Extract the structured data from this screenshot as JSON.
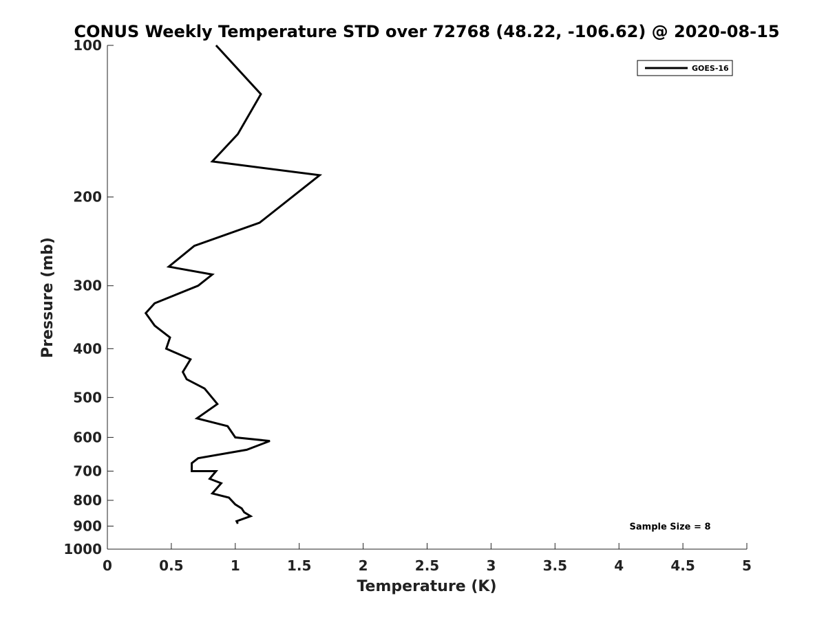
{
  "chart_data": {
    "type": "line",
    "title": "CONUS Weekly Temperature STD over 72768 (48.22, -106.62) @ 2020-08-15",
    "xlabel": "Temperature (K)",
    "ylabel": "Pressure (mb)",
    "xlim": [
      0,
      5
    ],
    "ylim": [
      100,
      1000
    ],
    "yscale": "log",
    "y_inverted": true,
    "grid": false,
    "legend_placement": "top-right",
    "x_ticks": [
      0,
      0.5,
      1,
      1.5,
      2,
      2.5,
      3,
      3.5,
      4,
      4.5,
      5
    ],
    "x_tick_labels": [
      "0",
      "0.5",
      "1",
      "1.5",
      "2",
      "2.5",
      "3",
      "3.5",
      "4",
      "4.5",
      "5"
    ],
    "y_ticks": [
      100,
      200,
      300,
      400,
      500,
      600,
      700,
      800,
      900,
      1000
    ],
    "y_tick_labels": [
      "100",
      "200",
      "300",
      "400",
      "500",
      "600",
      "700",
      "800",
      "900",
      "1000"
    ],
    "series": [
      {
        "name": "GOES-16",
        "color": "#000000",
        "points": [
          [
            0.85,
            100
          ],
          [
            1.2,
            125
          ],
          [
            1.02,
            150
          ],
          [
            0.82,
            170
          ],
          [
            1.66,
            181
          ],
          [
            1.19,
            225
          ],
          [
            0.68,
            250
          ],
          [
            0.48,
            275
          ],
          [
            0.82,
            285
          ],
          [
            0.71,
            300
          ],
          [
            0.37,
            325
          ],
          [
            0.3,
            340
          ],
          [
            0.37,
            360
          ],
          [
            0.49,
            380
          ],
          [
            0.46,
            400
          ],
          [
            0.65,
            420
          ],
          [
            0.59,
            445
          ],
          [
            0.62,
            460
          ],
          [
            0.76,
            480
          ],
          [
            0.86,
            515
          ],
          [
            0.7,
            550
          ],
          [
            0.94,
            570
          ],
          [
            1.0,
            600
          ],
          [
            1.27,
            610
          ],
          [
            1.09,
            635
          ],
          [
            0.71,
            660
          ],
          [
            0.66,
            675
          ],
          [
            0.66,
            700
          ],
          [
            0.85,
            700
          ],
          [
            0.8,
            725
          ],
          [
            0.89,
            740
          ],
          [
            0.82,
            775
          ],
          [
            0.95,
            790
          ],
          [
            1.0,
            815
          ],
          [
            1.05,
            830
          ],
          [
            1.07,
            845
          ],
          [
            1.12,
            860
          ],
          [
            1.01,
            880
          ],
          [
            1.02,
            890
          ]
        ]
      }
    ],
    "annotations": [
      {
        "text": "Sample Size = 8",
        "x": 4.4,
        "y": 900
      }
    ]
  }
}
